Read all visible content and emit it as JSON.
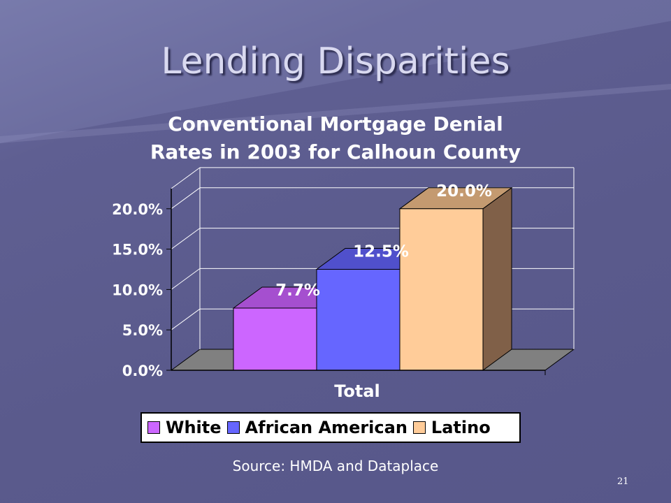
{
  "slide": {
    "title": "Lending Disparities",
    "source": "Source: HMDA and Dataplace",
    "number": "21"
  },
  "chart_data": {
    "type": "bar",
    "title_line1": "Conventional Mortgage Denial",
    "title_line2": "Rates in 2003 for Calhoun County",
    "categories": [
      "Total"
    ],
    "series": [
      {
        "name": "White",
        "values": [
          7.7
        ],
        "label": "7.7%",
        "color": "#cc66ff",
        "top_color": "#a54fcf",
        "side_color": "#8a3fb0"
      },
      {
        "name": "African American",
        "values": [
          12.5
        ],
        "label": "12.5%",
        "color": "#6666ff",
        "top_color": "#5050cc",
        "side_color": "#4444b0"
      },
      {
        "name": "Latino",
        "values": [
          20.0
        ],
        "label": "20.0%",
        "color": "#ffcc99",
        "top_color": "#c49a70",
        "side_color": "#806048"
      }
    ],
    "y_ticks": [
      "0.0%",
      "5.0%",
      "10.0%",
      "15.0%",
      "20.0%"
    ],
    "ylim": [
      0,
      22.5
    ],
    "grid": true,
    "legend_position": "bottom",
    "colors": {
      "floor": "#808080",
      "wall_lines": "#ffffff"
    }
  }
}
